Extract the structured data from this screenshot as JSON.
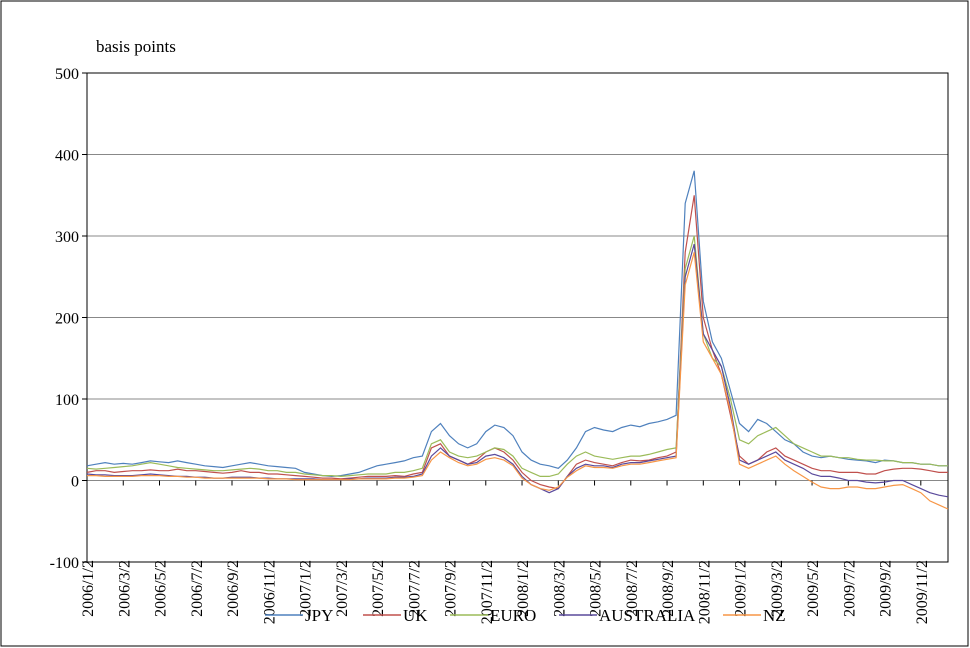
{
  "chart_data": {
    "type": "line",
    "y_label": "basis points",
    "categories": [
      "2006/1/2",
      null,
      null,
      null,
      "2006/3/2",
      null,
      null,
      null,
      "2006/5/2",
      null,
      null,
      null,
      "2006/7/2",
      null,
      null,
      null,
      "2006/9/2",
      null,
      null,
      null,
      "2006/11/2",
      null,
      null,
      null,
      "2007/1/2",
      null,
      null,
      null,
      "2007/3/2",
      null,
      null,
      null,
      "2007/5/2",
      null,
      null,
      null,
      "2007/7/2",
      null,
      null,
      null,
      "2007/9/2",
      null,
      null,
      null,
      "2007/11/2",
      null,
      null,
      null,
      "2008/1/2",
      null,
      null,
      null,
      "2008/3/2",
      null,
      null,
      null,
      "2008/5/2",
      null,
      null,
      null,
      "2008/7/2",
      null,
      null,
      null,
      "2008/9/2",
      null,
      null,
      null,
      "2008/11/2",
      null,
      null,
      null,
      "2009/1/2",
      null,
      null,
      null,
      "2009/3/2",
      null,
      null,
      null,
      "2009/5/2",
      null,
      null,
      null,
      "2009/7/2",
      null,
      null,
      null,
      "2009/9/2",
      null,
      null,
      null,
      "2009/11/2",
      null,
      null,
      null
    ],
    "series": [
      {
        "name": "JPY",
        "color": "#4f81bd",
        "values": [
          18,
          20,
          22,
          20,
          21,
          20,
          22,
          24,
          23,
          22,
          24,
          22,
          20,
          18,
          17,
          16,
          18,
          20,
          22,
          20,
          18,
          17,
          16,
          15,
          10,
          8,
          6,
          5,
          6,
          8,
          10,
          14,
          18,
          20,
          22,
          24,
          28,
          30,
          60,
          70,
          55,
          45,
          40,
          45,
          60,
          68,
          65,
          55,
          35,
          25,
          20,
          18,
          15,
          25,
          40,
          60,
          65,
          62,
          60,
          65,
          68,
          66,
          70,
          72,
          75,
          80,
          340,
          380,
          220,
          170,
          150,
          110,
          70,
          60,
          75,
          70,
          60,
          50,
          45,
          35,
          30,
          28,
          30,
          28,
          26,
          25,
          24,
          22,
          25,
          24,
          22,
          22,
          20,
          20,
          18,
          18
        ]
      },
      {
        "name": "UK",
        "color": "#c0504d",
        "values": [
          10,
          12,
          12,
          10,
          11,
          12,
          12,
          13,
          12,
          12,
          14,
          12,
          12,
          11,
          10,
          9,
          10,
          12,
          10,
          10,
          8,
          8,
          7,
          6,
          5,
          4,
          3,
          3,
          2,
          3,
          4,
          5,
          5,
          5,
          6,
          5,
          8,
          10,
          40,
          45,
          30,
          25,
          20,
          25,
          35,
          40,
          35,
          25,
          10,
          0,
          -5,
          -8,
          -10,
          5,
          20,
          25,
          22,
          20,
          18,
          22,
          25,
          24,
          25,
          28,
          30,
          35,
          280,
          350,
          200,
          160,
          130,
          80,
          30,
          20,
          25,
          35,
          40,
          30,
          25,
          20,
          15,
          12,
          12,
          10,
          10,
          10,
          8,
          8,
          12,
          14,
          15,
          15,
          14,
          12,
          10,
          10
        ]
      },
      {
        "name": "EURO",
        "color": "#9bbb59",
        "values": [
          15,
          14,
          15,
          16,
          17,
          18,
          20,
          22,
          20,
          18,
          16,
          15,
          14,
          13,
          12,
          12,
          13,
          14,
          15,
          14,
          12,
          12,
          10,
          10,
          8,
          7,
          6,
          6,
          5,
          6,
          7,
          8,
          8,
          8,
          10,
          10,
          12,
          15,
          45,
          50,
          35,
          30,
          28,
          30,
          35,
          40,
          38,
          30,
          15,
          10,
          5,
          5,
          8,
          20,
          30,
          35,
          30,
          28,
          26,
          28,
          30,
          30,
          32,
          35,
          38,
          40,
          260,
          300,
          180,
          150,
          140,
          100,
          50,
          45,
          55,
          60,
          65,
          55,
          45,
          40,
          35,
          30,
          30,
          28,
          28,
          26,
          25,
          25,
          24,
          24,
          22,
          22,
          20,
          20,
          18,
          18
        ]
      },
      {
        "name": "AUSTRALIA",
        "color": "#5a4a9c",
        "values": [
          8,
          7,
          7,
          6,
          6,
          6,
          7,
          8,
          7,
          6,
          5,
          5,
          4,
          4,
          3,
          3,
          4,
          4,
          4,
          3,
          3,
          2,
          2,
          2,
          2,
          2,
          1,
          1,
          1,
          2,
          2,
          3,
          3,
          3,
          4,
          4,
          5,
          8,
          30,
          40,
          30,
          25,
          20,
          22,
          30,
          32,
          28,
          20,
          5,
          -5,
          -10,
          -15,
          -10,
          5,
          15,
          20,
          18,
          18,
          16,
          20,
          22,
          22,
          24,
          26,
          28,
          30,
          250,
          290,
          180,
          160,
          140,
          90,
          25,
          20,
          25,
          30,
          35,
          25,
          20,
          15,
          8,
          5,
          5,
          3,
          0,
          0,
          -2,
          -3,
          -2,
          0,
          0,
          -5,
          -10,
          -15,
          -18,
          -20
        ]
      },
      {
        "name": "NZ",
        "color": "#f79646",
        "values": [
          6,
          6,
          5,
          5,
          5,
          5,
          6,
          6,
          6,
          5,
          5,
          4,
          4,
          3,
          3,
          3,
          3,
          3,
          3,
          3,
          2,
          2,
          2,
          1,
          1,
          1,
          1,
          1,
          1,
          1,
          2,
          2,
          2,
          2,
          3,
          3,
          4,
          6,
          25,
          35,
          28,
          22,
          18,
          20,
          26,
          28,
          25,
          18,
          3,
          -5,
          -10,
          -12,
          -8,
          4,
          12,
          18,
          16,
          16,
          15,
          18,
          20,
          20,
          22,
          24,
          26,
          28,
          240,
          280,
          170,
          150,
          130,
          85,
          20,
          15,
          20,
          25,
          30,
          20,
          12,
          5,
          -2,
          -8,
          -10,
          -10,
          -8,
          -8,
          -10,
          -10,
          -8,
          -6,
          -5,
          -10,
          -15,
          -25,
          -30,
          -35
        ]
      }
    ],
    "ylim": [
      -100,
      500
    ],
    "yticks": [
      -100,
      0,
      100,
      200,
      300,
      400,
      500
    ],
    "grid": true,
    "legend": "bottom"
  }
}
